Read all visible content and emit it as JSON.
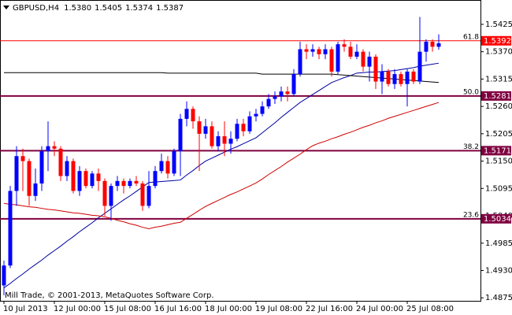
{
  "chart_data": {
    "type": "candlestick",
    "symbol": "GBPUSD,H4",
    "header_labels": [
      "1.5380",
      "1.5405",
      "1.5374",
      "1.5387"
    ],
    "footer": "Mill Trade, © 2001-2013, MetaQuotes Software Corp.",
    "bull_color": "#0000ff",
    "bear_color": "#ff0000",
    "categories": [
      "10 Jul 2013",
      null,
      null,
      null,
      null,
      null,
      null,
      null,
      "12 Jul 00:00",
      null,
      null,
      null,
      null,
      null,
      null,
      null,
      "15 Jul 08:00",
      null,
      null,
      null,
      null,
      null,
      null,
      null,
      "16 Jul 16:00",
      null,
      null,
      null,
      null,
      null,
      null,
      null,
      "18 Jul 00:00",
      null,
      null,
      null,
      null,
      null,
      null,
      null,
      "19 Jul 08:00",
      null,
      null,
      null,
      null,
      null,
      null,
      null,
      "22 Jul 16:00",
      null,
      null,
      null,
      null,
      null,
      null,
      null,
      "24 Jul 00:00",
      null,
      null,
      null,
      null,
      null,
      null,
      null,
      "25 Jul 08:00",
      null,
      null,
      null,
      null,
      null
    ],
    "open": [
      1.49,
      1.494,
      1.509,
      1.516,
      1.515,
      1.508,
      1.5105,
      1.517,
      1.518,
      1.5175,
      1.512,
      1.515,
      1.509,
      1.513,
      1.51,
      1.5125,
      1.511,
      1.506,
      1.51,
      1.511,
      1.51,
      1.511,
      1.5105,
      1.506,
      1.51,
      1.513,
      1.515,
      1.5125,
      1.517,
      1.5235,
      1.5255,
      1.523,
      1.5205,
      1.522,
      1.518,
      1.52,
      1.5185,
      1.5195,
      1.5225,
      1.521,
      1.524,
      1.5245,
      1.526,
      1.5275,
      1.528,
      1.529,
      1.5285,
      1.5325,
      1.5375,
      1.537,
      1.5375,
      1.5365,
      1.5375,
      1.533,
      1.5385,
      1.538,
      1.536,
      1.537,
      1.534,
      1.536,
      1.531,
      1.533,
      1.5305,
      1.5325,
      1.5305,
      1.533,
      1.531,
      1.537,
      1.539,
      1.538
    ],
    "high": [
      1.495,
      1.51,
      1.518,
      1.5175,
      1.5155,
      1.5135,
      1.518,
      1.523,
      1.519,
      1.518,
      1.516,
      1.5155,
      1.514,
      1.5135,
      1.513,
      1.5135,
      1.5115,
      1.5105,
      1.512,
      1.5115,
      1.5115,
      1.512,
      1.511,
      1.513,
      1.514,
      1.5165,
      1.516,
      1.5175,
      1.5245,
      1.527,
      1.526,
      1.524,
      1.5235,
      1.523,
      1.521,
      1.523,
      1.521,
      1.5235,
      1.5235,
      1.525,
      1.5255,
      1.527,
      1.5285,
      1.529,
      1.53,
      1.53,
      1.5335,
      1.539,
      1.5385,
      1.5385,
      1.538,
      1.5385,
      1.538,
      1.539,
      1.5395,
      1.539,
      1.5385,
      1.5375,
      1.537,
      1.5365,
      1.5345,
      1.5335,
      1.5335,
      1.533,
      1.5335,
      1.5335,
      1.544,
      1.5395,
      1.5395,
      1.5405
    ],
    "low": [
      1.488,
      1.4935,
      1.506,
      1.509,
      1.506,
      1.507,
      1.509,
      1.513,
      1.516,
      1.511,
      1.511,
      1.5085,
      1.508,
      1.5095,
      1.5095,
      1.509,
      1.504,
      1.503,
      1.509,
      1.5085,
      1.5095,
      1.51,
      1.505,
      1.5055,
      1.5095,
      1.5125,
      1.5115,
      1.512,
      1.512,
      1.522,
      1.5215,
      1.513,
      1.5195,
      1.5175,
      1.517,
      1.516,
      1.5165,
      1.519,
      1.52,
      1.5205,
      1.523,
      1.524,
      1.5255,
      1.5265,
      1.527,
      1.527,
      1.528,
      1.532,
      1.5355,
      1.536,
      1.5355,
      1.5355,
      1.532,
      1.5325,
      1.537,
      1.5355,
      1.5355,
      1.533,
      1.531,
      1.5295,
      1.5285,
      1.53,
      1.5295,
      1.53,
      1.526,
      1.5305,
      1.5305,
      1.535,
      1.537,
      1.5374
    ],
    "close": [
      1.494,
      1.509,
      1.516,
      1.515,
      1.508,
      1.5105,
      1.517,
      1.518,
      1.5175,
      1.512,
      1.515,
      1.509,
      1.513,
      1.51,
      1.5125,
      1.511,
      1.506,
      1.51,
      1.511,
      1.51,
      1.511,
      1.5105,
      1.506,
      1.51,
      1.513,
      1.515,
      1.5125,
      1.517,
      1.5235,
      1.5255,
      1.523,
      1.5205,
      1.522,
      1.518,
      1.52,
      1.5185,
      1.5195,
      1.5225,
      1.521,
      1.524,
      1.5245,
      1.526,
      1.5275,
      1.528,
      1.529,
      1.5285,
      1.5325,
      1.5375,
      1.537,
      1.5375,
      1.5365,
      1.5375,
      1.533,
      1.5385,
      1.538,
      1.536,
      1.537,
      1.534,
      1.536,
      1.531,
      1.533,
      1.5305,
      1.5325,
      1.5305,
      1.533,
      1.531,
      1.537,
      1.539,
      1.538,
      1.5387
    ],
    "series": [
      {
        "color": "#0000a0",
        "values": [
          1.4895,
          1.4904,
          1.4914,
          1.4923,
          1.4933,
          1.4942,
          1.4951,
          1.4961,
          1.497,
          1.4979,
          1.4989,
          1.4998,
          1.5008,
          1.5017,
          1.5026,
          1.5036,
          1.5045,
          1.5054,
          1.5063,
          1.5072,
          1.508,
          1.5089,
          1.5098,
          1.5107,
          1.5108,
          1.5109,
          1.511,
          1.5111,
          1.5112,
          1.5122,
          1.5131,
          1.5141,
          1.515,
          1.5156,
          1.5162,
          1.5168,
          1.5174,
          1.5179,
          1.5185,
          1.5191,
          1.5197,
          1.5207,
          1.5217,
          1.5227,
          1.5238,
          1.5248,
          1.5258,
          1.5268,
          1.5276,
          1.5284,
          1.5292,
          1.53,
          1.5308,
          1.5313,
          1.5318,
          1.5322,
          1.5327,
          1.5328,
          1.5329,
          1.5329,
          1.533,
          1.5331,
          1.5332,
          1.5334,
          1.5336,
          1.5338,
          1.5341,
          1.5343,
          1.5345,
          1.5347
        ]
      },
      {
        "color": "#d00000",
        "values": [
          1.5065,
          1.5063,
          1.5062,
          1.506,
          1.5058,
          1.5057,
          1.5055,
          1.5053,
          1.5052,
          1.505,
          1.5048,
          1.5046,
          1.5045,
          1.5043,
          1.5041,
          1.504,
          1.5038,
          1.5035,
          1.5031,
          1.5028,
          1.5024,
          1.5021,
          1.5017,
          1.5014,
          1.5017,
          1.5019,
          1.5022,
          1.5025,
          1.5027,
          1.5035,
          1.5043,
          1.5051,
          1.5059,
          1.5065,
          1.5071,
          1.5077,
          1.5083,
          1.5088,
          1.5094,
          1.51,
          1.5106,
          1.5114,
          1.5123,
          1.5131,
          1.5139,
          1.5148,
          1.5156,
          1.5164,
          1.5173,
          1.5181,
          1.5186,
          1.519,
          1.5195,
          1.5199,
          1.5204,
          1.5208,
          1.5213,
          1.5218,
          1.5222,
          1.5227,
          1.5231,
          1.5236,
          1.524,
          1.5244,
          1.5248,
          1.5252,
          1.5256,
          1.526,
          1.5264,
          1.5268
        ]
      },
      {
        "color": "#000000",
        "values": [
          1.5328,
          1.5328,
          1.5328,
          1.5328,
          1.5328,
          1.5328,
          1.5328,
          1.5328,
          1.5328,
          1.5328,
          1.5328,
          1.5328,
          1.5328,
          1.5328,
          1.5328,
          1.5328,
          1.5328,
          1.5328,
          1.5328,
          1.5328,
          1.5328,
          1.5328,
          1.5328,
          1.5328,
          1.5328,
          1.5328,
          1.5327,
          1.5327,
          1.5327,
          1.5327,
          1.5327,
          1.5327,
          1.5327,
          1.5327,
          1.5327,
          1.5327,
          1.5327,
          1.5327,
          1.5327,
          1.5327,
          1.5327,
          1.5325,
          1.5325,
          1.5325,
          1.5325,
          1.5325,
          1.5325,
          1.5325,
          1.5325,
          1.5325,
          1.5325,
          1.5325,
          1.5325,
          1.5324,
          1.5323,
          1.5322,
          1.5321,
          1.532,
          1.5319,
          1.5318,
          1.5317,
          1.5316,
          1.5315,
          1.5314,
          1.5313,
          1.5312,
          1.5311,
          1.531,
          1.5309,
          1.5308
        ]
      }
    ],
    "levels": [
      {
        "label": 61.8,
        "value": 1.5392,
        "color": "#ff0000"
      },
      {
        "label": {
          "value": 50,
          "label": "50.0"
        },
        "value": 1.5281,
        "color": "#800040"
      },
      {
        "label": 38.2,
        "value": 1.5171,
        "color": "#800040"
      },
      {
        "label": 23.6,
        "value": 1.5034,
        "color": "#800040"
      }
    ],
    "ylim": [
      1.4869,
      1.5474
    ],
    "yticks": [
      1.5425,
      {
        "value": 1.537,
        "label": "1.5370"
      },
      1.5315,
      {
        "value": 1.526,
        "label": "1.5260"
      },
      1.5205,
      {
        "value": 1.515,
        "label": "1.5150"
      },
      1.5095,
      {
        "value": 1.504,
        "label": "1.5040"
      },
      1.4985,
      {
        "value": 1.493,
        "label": "1.4930"
      },
      1.4875
    ]
  }
}
